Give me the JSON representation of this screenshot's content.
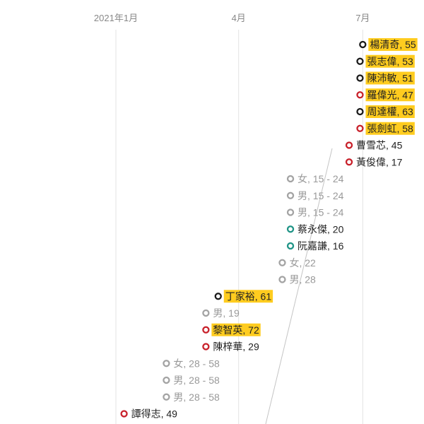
{
  "chart_data": {
    "type": "scatter",
    "title": "",
    "xlabel": "",
    "ylabel": "",
    "x_axis": {
      "kind": "date",
      "ticks": [
        {
          "date": "2021-01-01",
          "label": "2021年1月"
        },
        {
          "date": "2021-04-01",
          "label": "4月"
        },
        {
          "date": "2021-07-01",
          "label": "7月"
        }
      ],
      "grid": true
    },
    "legend": "none",
    "colors": {
      "black": "#1a1a1a",
      "red": "#c8202a",
      "teal": "#1f9486",
      "grey": "#a3a3a3",
      "highlight": "#ffcc1f",
      "text_dark": "#222222",
      "text_grey": "#999999"
    },
    "points": [
      {
        "date": "2021-07-01",
        "label": "楊清奇, 55",
        "color": "black",
        "highlight": true
      },
      {
        "date": "2021-06-29",
        "label": "張志偉, 53",
        "color": "black",
        "highlight": true
      },
      {
        "date": "2021-06-29",
        "label": "陳沛敏, 51",
        "color": "black",
        "highlight": true
      },
      {
        "date": "2021-06-29",
        "label": "羅偉光, 47",
        "color": "red",
        "highlight": true
      },
      {
        "date": "2021-06-29",
        "label": "周達權, 63",
        "color": "black",
        "highlight": true
      },
      {
        "date": "2021-06-29",
        "label": "張劍虹, 58",
        "color": "red",
        "highlight": true
      },
      {
        "date": "2021-06-21",
        "label": "曹雪芯, 45",
        "color": "red",
        "highlight": false
      },
      {
        "date": "2021-06-21",
        "label": "黃俊偉, 17",
        "color": "red",
        "highlight": false
      },
      {
        "date": "2021-05-09",
        "label": "女, 15 - 24",
        "color": "grey",
        "highlight": false
      },
      {
        "date": "2021-05-09",
        "label": "男, 15 - 24",
        "color": "grey",
        "highlight": false
      },
      {
        "date": "2021-05-09",
        "label": "男, 15 - 24",
        "color": "grey",
        "highlight": false
      },
      {
        "date": "2021-05-09",
        "label": "蔡永傑, 20",
        "color": "teal",
        "highlight": false
      },
      {
        "date": "2021-05-09",
        "label": "阮嘉謙, 16",
        "color": "teal",
        "highlight": false
      },
      {
        "date": "2021-05-03",
        "label": "女, 22",
        "color": "grey",
        "highlight": false
      },
      {
        "date": "2021-05-03",
        "label": "男, 28",
        "color": "grey",
        "highlight": false
      },
      {
        "date": "2021-03-17",
        "label": "丁家裕, 61",
        "color": "black",
        "highlight": true
      },
      {
        "date": "2021-03-08",
        "label": "男, 19",
        "color": "grey",
        "highlight": false
      },
      {
        "date": "2021-03-08",
        "label": "黎智英, 72",
        "color": "red",
        "highlight": true
      },
      {
        "date": "2021-03-08",
        "label": "陳梓華, 29",
        "color": "red",
        "highlight": false
      },
      {
        "date": "2021-02-07",
        "label": "女, 28 - 58",
        "color": "grey",
        "highlight": false
      },
      {
        "date": "2021-02-07",
        "label": "男, 28 - 58",
        "color": "grey",
        "highlight": false
      },
      {
        "date": "2021-02-07",
        "label": "男, 28 - 58",
        "color": "grey",
        "highlight": false
      },
      {
        "date": "2021-01-07",
        "label": "譚得志, 49",
        "color": "red",
        "highlight": false
      }
    ]
  }
}
